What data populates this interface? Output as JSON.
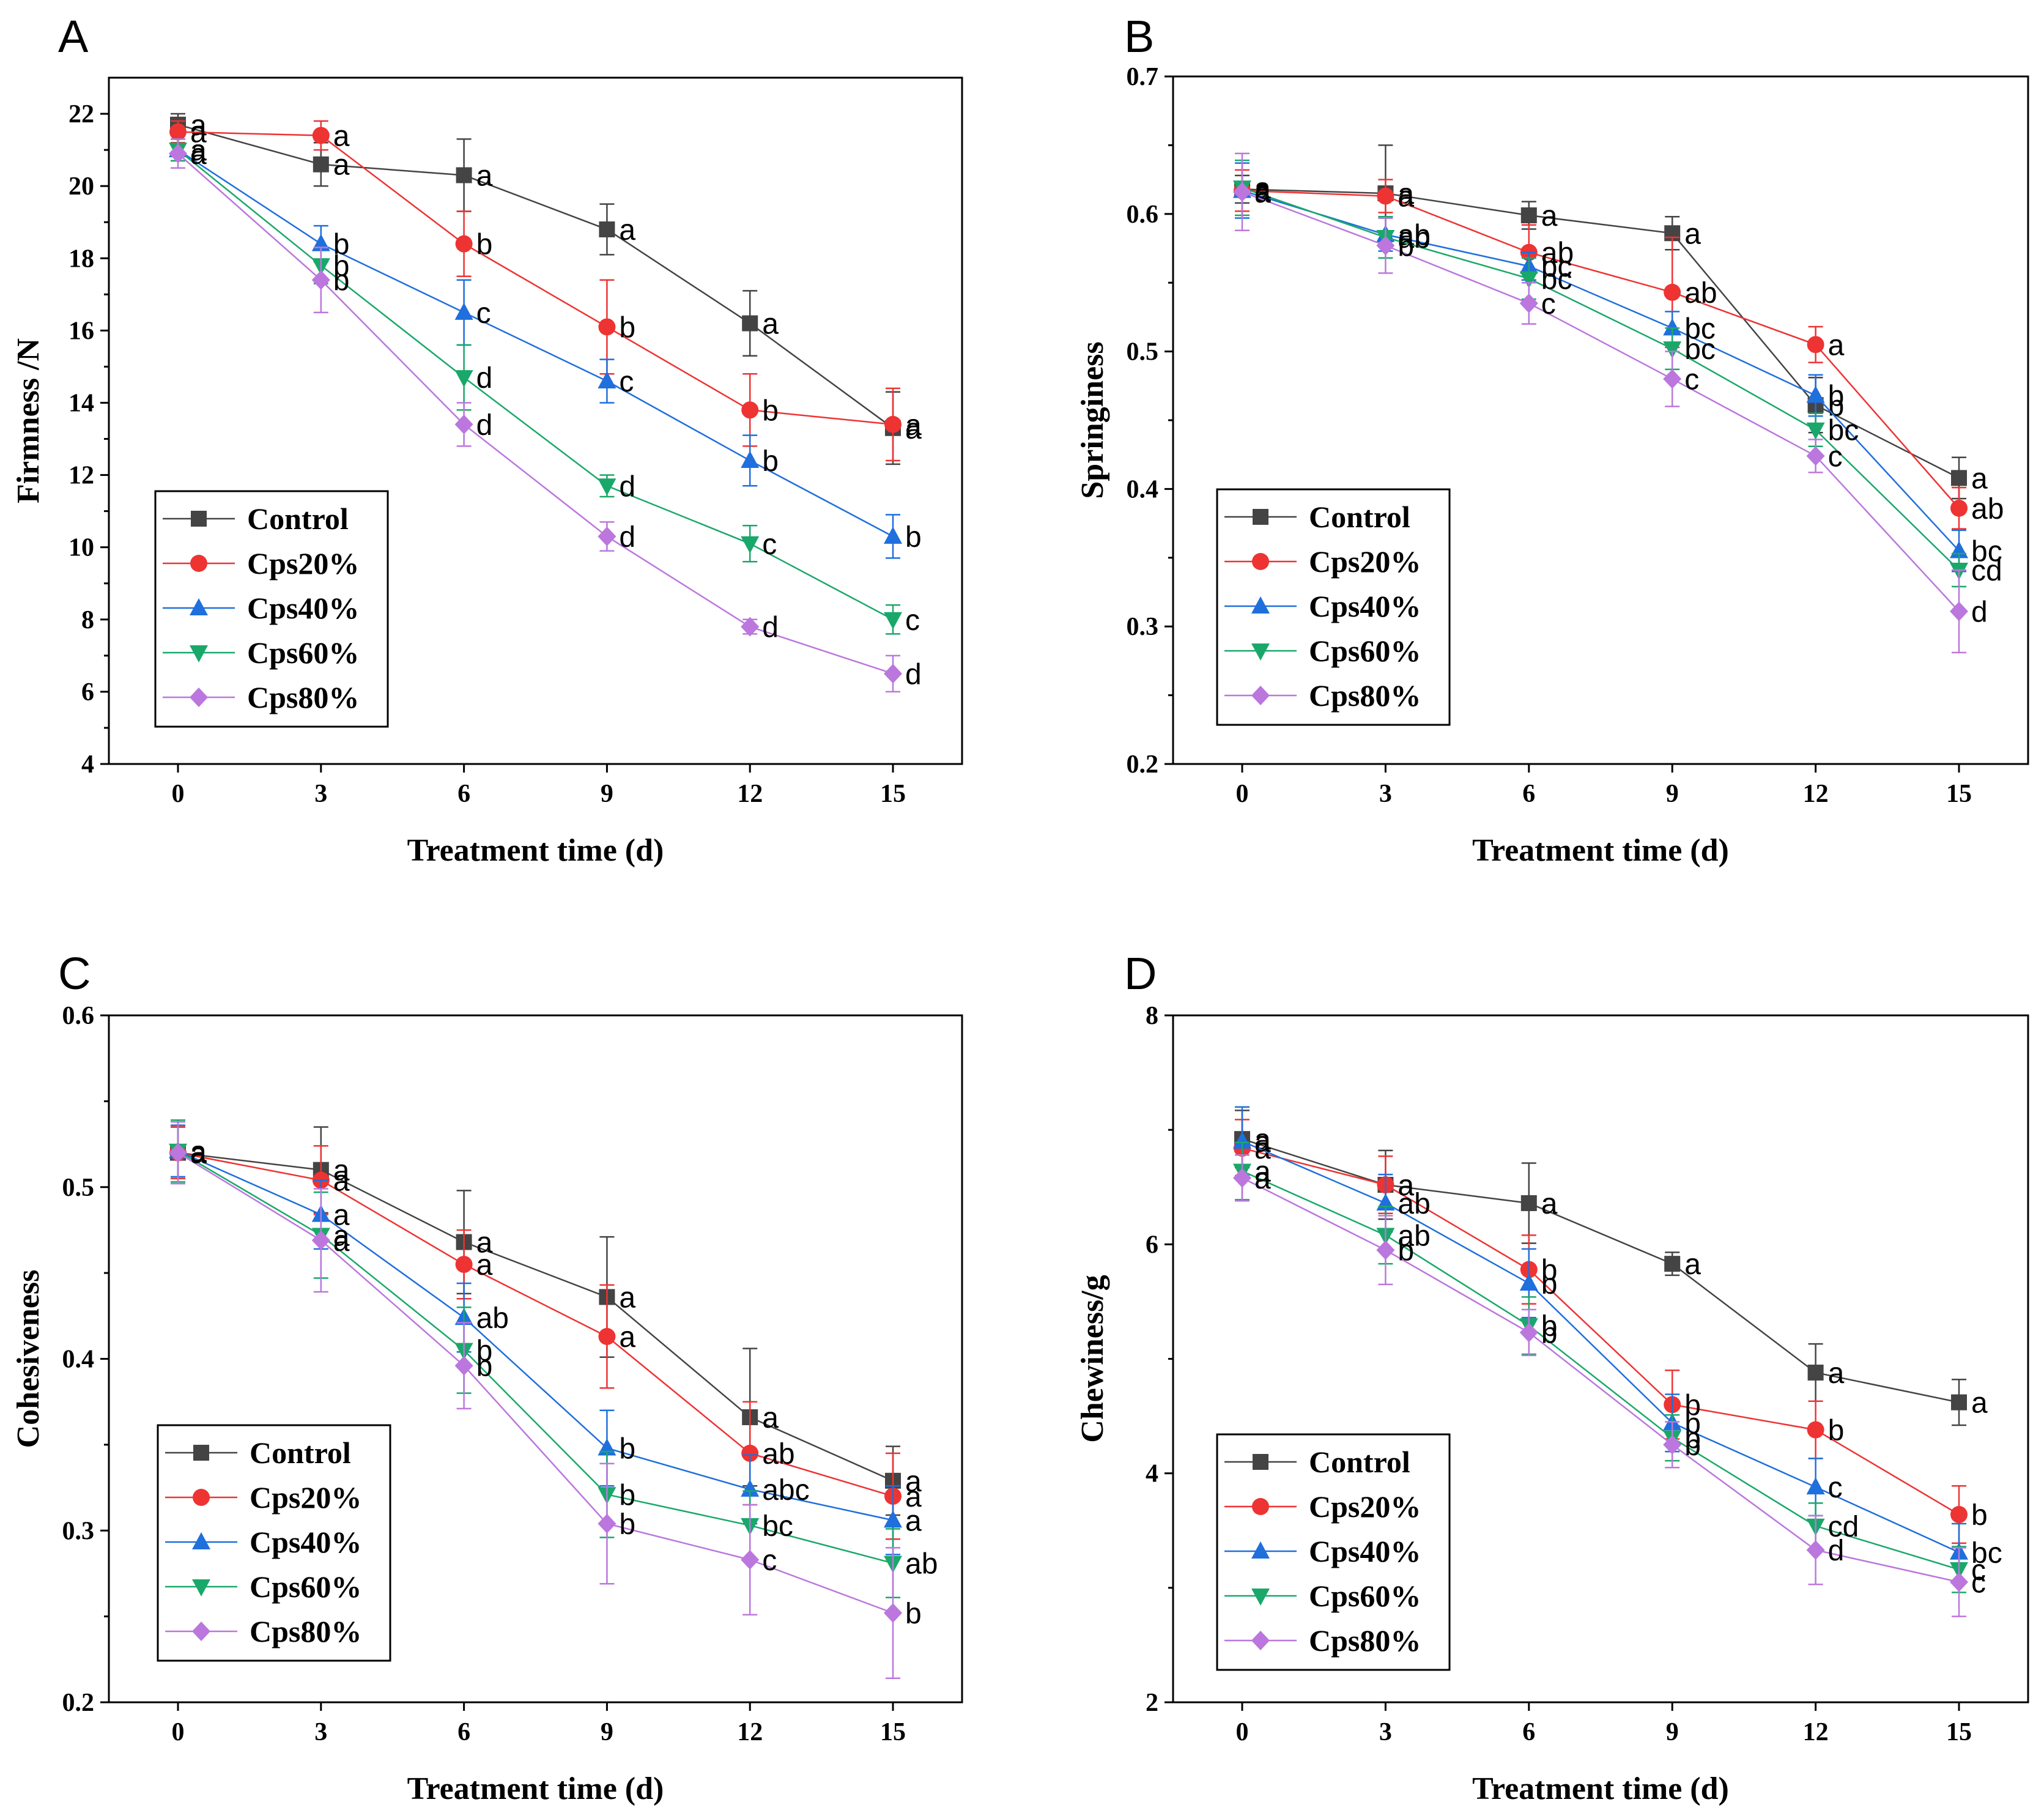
{
  "chart_data": [
    {
      "type": "line",
      "panel_label": "A",
      "title": "",
      "xlabel": "Treatment time (d)",
      "ylabel": "Firmness /N",
      "x": [
        0,
        3,
        6,
        9,
        12,
        15
      ],
      "xticks": [
        "0",
        "3",
        "6",
        "9",
        "12",
        "15"
      ],
      "ylim": [
        4,
        23
      ],
      "yticks": [
        "4",
        "6",
        "8",
        "10",
        "12",
        "14",
        "16",
        "18",
        "20",
        "22"
      ],
      "legend_position": "lower-left",
      "series": [
        {
          "name": "Control",
          "color": "#444444",
          "marker": "square",
          "values": [
            21.7,
            20.6,
            20.3,
            18.8,
            16.2,
            13.3
          ],
          "errors": [
            0.3,
            0.6,
            1.0,
            0.7,
            0.9,
            1.0
          ],
          "letters": [
            "a",
            "a",
            "a",
            "a",
            "a",
            "a"
          ]
        },
        {
          "name": "Cps20%",
          "color": "#ee3333",
          "marker": "circle",
          "values": [
            21.5,
            21.4,
            18.4,
            16.1,
            13.8,
            13.4
          ],
          "errors": [
            0.3,
            0.4,
            0.9,
            1.3,
            1.0,
            1.0
          ],
          "letters": [
            "a",
            "a",
            "b",
            "b",
            "b",
            "a"
          ]
        },
        {
          "name": "Cps40%",
          "color": "#1f6fdd",
          "marker": "triangle-up",
          "values": [
            21.0,
            18.4,
            16.5,
            14.6,
            12.4,
            10.3
          ],
          "errors": [
            0.3,
            0.5,
            0.9,
            0.6,
            0.7,
            0.6
          ],
          "letters": [
            "a",
            "b",
            "c",
            "c",
            "b",
            "b"
          ]
        },
        {
          "name": "Cps60%",
          "color": "#1aa86a",
          "marker": "triangle-down",
          "values": [
            21.0,
            17.8,
            14.7,
            11.7,
            10.1,
            8.0
          ],
          "errors": [
            0.3,
            0.5,
            0.9,
            0.3,
            0.5,
            0.4
          ],
          "letters": [
            "a",
            "b",
            "d",
            "d",
            "c",
            "c"
          ]
        },
        {
          "name": "Cps80%",
          "color": "#bb77dd",
          "marker": "diamond",
          "values": [
            20.9,
            17.4,
            13.4,
            10.3,
            7.8,
            6.5
          ],
          "errors": [
            0.4,
            0.9,
            0.6,
            0.4,
            0.2,
            0.5
          ],
          "letters": [
            "a",
            "b",
            "d",
            "d",
            "d",
            "d"
          ]
        }
      ]
    },
    {
      "type": "line",
      "panel_label": "B",
      "title": "",
      "xlabel": "Treatment time (d)",
      "ylabel": "Springiness",
      "x": [
        0,
        3,
        6,
        9,
        12,
        15
      ],
      "xticks": [
        "0",
        "3",
        "6",
        "9",
        "12",
        "15"
      ],
      "ylim": [
        0.2,
        0.7
      ],
      "yticks": [
        "0.2",
        "0.3",
        "0.4",
        "0.5",
        "0.6",
        "0.7"
      ],
      "legend_position": "lower-left",
      "series": [
        {
          "name": "Control",
          "color": "#444444",
          "marker": "square",
          "values": [
            0.618,
            0.615,
            0.599,
            0.586,
            0.461,
            0.408
          ],
          "errors": [
            0.01,
            0.035,
            0.01,
            0.012,
            0.02,
            0.015
          ],
          "letters": [
            "a",
            "a",
            "a",
            "a",
            "b",
            "a"
          ]
        },
        {
          "name": "Cps20%",
          "color": "#ee3333",
          "marker": "circle",
          "values": [
            0.617,
            0.613,
            0.572,
            0.543,
            0.505,
            0.386
          ],
          "errors": [
            0.015,
            0.012,
            0.02,
            0.04,
            0.013,
            0.015
          ],
          "letters": [
            "a",
            "a",
            "ab",
            "ab",
            "a",
            "ab"
          ]
        },
        {
          "name": "Cps40%",
          "color": "#1f6fdd",
          "marker": "triangle-up",
          "values": [
            0.617,
            0.585,
            0.562,
            0.517,
            0.468,
            0.355
          ],
          "errors": [
            0.02,
            0.012,
            0.01,
            0.012,
            0.015,
            0.015
          ],
          "letters": [
            "a",
            "ab",
            "bc",
            "bc",
            "b",
            "bc"
          ]
        },
        {
          "name": "Cps60%",
          "color": "#1aa86a",
          "marker": "triangle-down",
          "values": [
            0.619,
            0.583,
            0.553,
            0.502,
            0.443,
            0.341
          ],
          "errors": [
            0.02,
            0.015,
            0.015,
            0.015,
            0.012,
            0.012
          ],
          "letters": [
            "a",
            "ab",
            "bc",
            "bc",
            "bc",
            "cd"
          ]
        },
        {
          "name": "Cps80%",
          "color": "#bb77dd",
          "marker": "diamond",
          "values": [
            0.616,
            0.577,
            0.535,
            0.48,
            0.424,
            0.311
          ],
          "errors": [
            0.028,
            0.02,
            0.015,
            0.02,
            0.012,
            0.03
          ],
          "letters": [
            "a",
            "b",
            "c",
            "c",
            "c",
            "d"
          ]
        }
      ]
    },
    {
      "type": "line",
      "panel_label": "C",
      "title": "",
      "xlabel": "Treatment time (d)",
      "ylabel": "Cohesiveness",
      "x": [
        0,
        3,
        6,
        9,
        12,
        15
      ],
      "xticks": [
        "0",
        "3",
        "6",
        "9",
        "12",
        "15"
      ],
      "ylim": [
        0.2,
        0.6
      ],
      "yticks": [
        "0.2",
        "0.3",
        "0.4",
        "0.5",
        "0.6"
      ],
      "legend_position": "lower-left",
      "series": [
        {
          "name": "Control",
          "color": "#444444",
          "marker": "square",
          "values": [
            0.52,
            0.51,
            0.468,
            0.436,
            0.366,
            0.329
          ],
          "errors": [
            0.015,
            0.025,
            0.03,
            0.035,
            0.04,
            0.02
          ],
          "letters": [
            "a",
            "a",
            "a",
            "a",
            "a",
            "a"
          ]
        },
        {
          "name": "Cps20%",
          "color": "#ee3333",
          "marker": "circle",
          "values": [
            0.52,
            0.504,
            0.455,
            0.413,
            0.345,
            0.32
          ],
          "errors": [
            0.015,
            0.02,
            0.02,
            0.03,
            0.03,
            0.025
          ],
          "letters": [
            "a",
            "a",
            "a",
            "a",
            "ab",
            "a"
          ]
        },
        {
          "name": "Cps40%",
          "color": "#1f6fdd",
          "marker": "triangle-up",
          "values": [
            0.521,
            0.484,
            0.424,
            0.348,
            0.324,
            0.306
          ],
          "errors": [
            0.015,
            0.02,
            0.02,
            0.022,
            0.02,
            0.02
          ],
          "letters": [
            "a",
            "a",
            "ab",
            "b",
            "abc",
            "a"
          ]
        },
        {
          "name": "Cps60%",
          "color": "#1aa86a",
          "marker": "triangle-down",
          "values": [
            0.521,
            0.472,
            0.405,
            0.321,
            0.303,
            0.281
          ],
          "errors": [
            0.018,
            0.025,
            0.025,
            0.025,
            0.02,
            0.02
          ],
          "letters": [
            "a",
            "a",
            "b",
            "b",
            "bc",
            "ab"
          ]
        },
        {
          "name": "Cps80%",
          "color": "#bb77dd",
          "marker": "diamond",
          "values": [
            0.52,
            0.469,
            0.396,
            0.304,
            0.283,
            0.252
          ],
          "errors": [
            0.018,
            0.03,
            0.025,
            0.035,
            0.032,
            0.038
          ],
          "letters": [
            "a",
            "a",
            "b",
            "b",
            "c",
            "b"
          ]
        }
      ]
    },
    {
      "type": "line",
      "panel_label": "D",
      "title": "",
      "xlabel": "Treatment time (d)",
      "ylabel": "Chewiness/g",
      "x": [
        0,
        3,
        6,
        9,
        12,
        15
      ],
      "xticks": [
        "0",
        "3",
        "6",
        "9",
        "12",
        "15"
      ],
      "ylim": [
        2,
        8
      ],
      "yticks": [
        "2",
        "4",
        "6",
        "8"
      ],
      "legend_position": "lower-left",
      "series": [
        {
          "name": "Control",
          "color": "#444444",
          "marker": "square",
          "values": [
            6.92,
            6.52,
            6.36,
            5.83,
            4.88,
            4.62
          ],
          "errors": [
            0.25,
            0.3,
            0.35,
            0.1,
            0.25,
            0.2
          ],
          "letters": [
            "a",
            "a",
            "a",
            "a",
            "a",
            "a"
          ]
        },
        {
          "name": "Cps20%",
          "color": "#ee3333",
          "marker": "circle",
          "values": [
            6.84,
            6.52,
            5.78,
            4.6,
            4.38,
            3.64
          ],
          "errors": [
            0.25,
            0.25,
            0.3,
            0.3,
            0.25,
            0.25
          ],
          "letters": [
            "a",
            "a",
            "b",
            "b",
            "b",
            "b"
          ]
        },
        {
          "name": "Cps40%",
          "color": "#1f6fdd",
          "marker": "triangle-up",
          "values": [
            6.9,
            6.36,
            5.66,
            4.44,
            3.88,
            3.31
          ],
          "errors": [
            0.3,
            0.25,
            0.3,
            0.25,
            0.25,
            0.25
          ],
          "letters": [
            "a",
            "ab",
            "b",
            "b",
            "c",
            "bc"
          ]
        },
        {
          "name": "Cps60%",
          "color": "#1aa86a",
          "marker": "triangle-down",
          "values": [
            6.64,
            6.08,
            5.29,
            4.31,
            3.54,
            3.16
          ],
          "errors": [
            0.25,
            0.25,
            0.25,
            0.2,
            0.2,
            0.2
          ],
          "letters": [
            "a",
            "ab",
            "b",
            "b",
            "cd",
            "c"
          ]
        },
        {
          "name": "Cps80%",
          "color": "#bb77dd",
          "marker": "diamond",
          "values": [
            6.58,
            5.95,
            5.23,
            4.25,
            3.33,
            3.05
          ],
          "errors": [
            0.2,
            0.3,
            0.2,
            0.2,
            0.3,
            0.3
          ],
          "letters": [
            "a",
            "b",
            "b",
            "b",
            "d",
            "c"
          ]
        }
      ]
    }
  ]
}
